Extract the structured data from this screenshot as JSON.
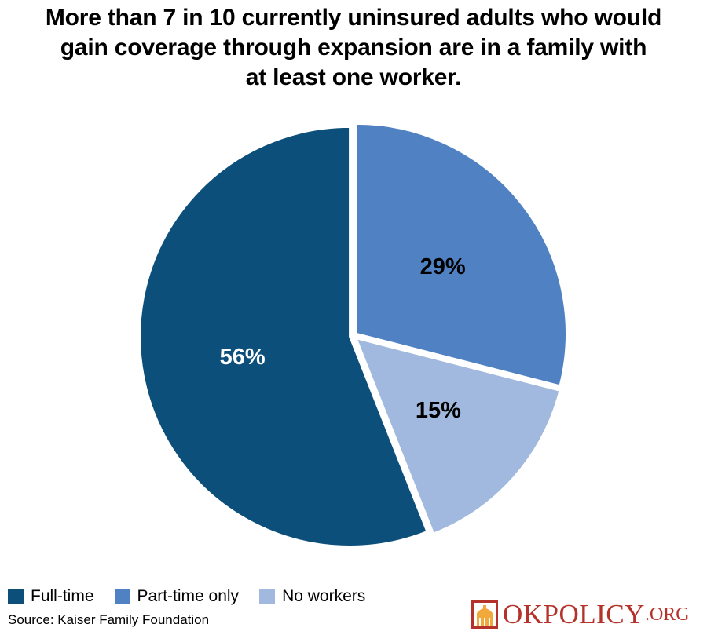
{
  "title_lines": [
    "More than 7 in 10 currently uninsured adults who would",
    "gain coverage through expansion are in a family with",
    "at least one worker."
  ],
  "chart_data": {
    "type": "pie",
    "title": "More than 7 in 10 currently uninsured adults who would gain coverage through expansion are in a family with at least one worker.",
    "slices": [
      {
        "name": "Part-time only",
        "value": 29,
        "label": "29%",
        "color": "#4f81c3",
        "label_color": "#000000"
      },
      {
        "name": "No workers",
        "value": 15,
        "label": "15%",
        "color": "#a1b9de",
        "label_color": "#000000"
      },
      {
        "name": "Full-time",
        "value": 56,
        "label": "56%",
        "color": "#0d4f7b",
        "label_color": "#ffffff"
      }
    ],
    "legend_order": [
      "Full-time",
      "Part-time only",
      "No workers"
    ],
    "legend_position": "bottom-left",
    "start_angle_deg": 0,
    "direction": "clockwise"
  },
  "legend": [
    {
      "label": "Full-time",
      "color": "#0d4f7b"
    },
    {
      "label": "Part-time only",
      "color": "#4f81c3"
    },
    {
      "label": "No workers",
      "color": "#a1b9de"
    }
  ],
  "source": "Source: Kaiser Family Foundation",
  "logo": {
    "main": "OKPOLICY",
    "suffix": ".ORG",
    "accent_color": "#b5322b",
    "mark_color": "#f0a93a",
    "icon": "capitol-dome-icon"
  }
}
